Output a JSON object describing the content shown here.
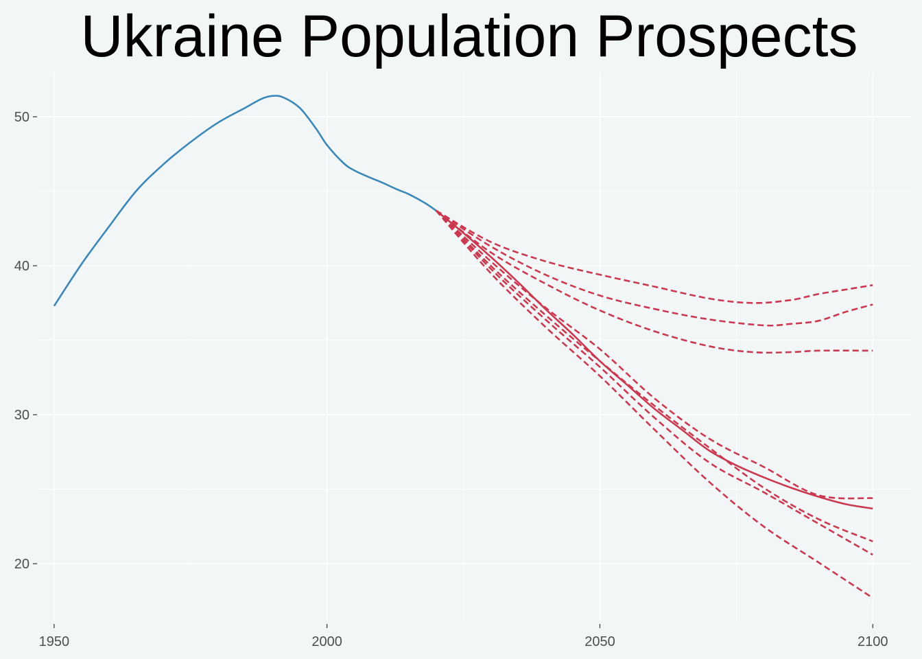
{
  "chart_data": {
    "type": "line",
    "title": "Ukraine Population Prospects",
    "xlabel": "",
    "ylabel": "",
    "xlim": [
      1947,
      2107
    ],
    "ylim": [
      16,
      53
    ],
    "x_ticks": [
      1950,
      2000,
      2050,
      2100
    ],
    "x_tick_labels": [
      "1950",
      "2000",
      "2050",
      "2100"
    ],
    "y_ticks": [
      20,
      30,
      40,
      50
    ],
    "y_tick_labels": [
      "20",
      "30",
      "40",
      "50"
    ],
    "grid": true,
    "legend": "none",
    "colors": {
      "background": "#f2f6f7",
      "historical": "#3a87b8",
      "projection": "#c93a50"
    },
    "series": [
      {
        "role": "historical",
        "style": "solid",
        "x": [
          1950,
          1955,
          1960,
          1965,
          1970,
          1975,
          1980,
          1985,
          1988,
          1990,
          1992,
          1995,
          1998,
          2000,
          2003,
          2005,
          2008,
          2010,
          2013,
          2015,
          2018,
          2020
        ],
        "y": [
          37.3,
          40.1,
          42.6,
          45.0,
          46.8,
          48.3,
          49.6,
          50.6,
          51.2,
          51.4,
          51.3,
          50.6,
          49.2,
          48.1,
          46.9,
          46.4,
          45.9,
          45.6,
          45.1,
          44.8,
          44.2,
          43.7
        ]
      },
      {
        "role": "projection",
        "style": "solid",
        "x": [
          2020,
          2025,
          2030,
          2035,
          2040,
          2045,
          2050,
          2055,
          2060,
          2065,
          2070,
          2075,
          2080,
          2085,
          2090,
          2095,
          2100
        ],
        "y": [
          43.7,
          42.2,
          40.6,
          38.9,
          37.1,
          35.4,
          33.6,
          32.0,
          30.4,
          29.0,
          27.6,
          26.6,
          25.8,
          25.1,
          24.5,
          24.0,
          23.7
        ]
      },
      {
        "role": "projection",
        "style": "dashed",
        "x": [
          2020,
          2030,
          2040,
          2050,
          2060,
          2070,
          2078,
          2085,
          2090,
          2095,
          2100
        ],
        "y": [
          43.7,
          41.6,
          40.3,
          39.4,
          38.6,
          37.8,
          37.5,
          37.7,
          38.1,
          38.4,
          38.7
        ]
      },
      {
        "role": "projection",
        "style": "dashed",
        "x": [
          2020,
          2030,
          2040,
          2050,
          2060,
          2070,
          2080,
          2085,
          2090,
          2095,
          2100
        ],
        "y": [
          43.7,
          41.3,
          39.4,
          38.0,
          37.1,
          36.4,
          36.0,
          36.1,
          36.3,
          36.9,
          37.4
        ]
      },
      {
        "role": "projection",
        "style": "dashed",
        "x": [
          2020,
          2030,
          2040,
          2050,
          2060,
          2070,
          2078,
          2085,
          2090,
          2100
        ],
        "y": [
          43.7,
          40.9,
          38.8,
          37.0,
          35.6,
          34.6,
          34.2,
          34.2,
          34.3,
          34.3
        ]
      },
      {
        "role": "projection",
        "style": "dashed",
        "x": [
          2020,
          2030,
          2040,
          2050,
          2060,
          2070,
          2080,
          2090,
          2100
        ],
        "y": [
          43.7,
          40.3,
          37.2,
          34.4,
          31.1,
          28.4,
          26.5,
          24.6,
          24.4
        ]
      },
      {
        "role": "projection",
        "style": "dashed",
        "x": [
          2020,
          2030,
          2040,
          2050,
          2060,
          2070,
          2080,
          2090,
          2100
        ],
        "y": [
          43.7,
          40.0,
          36.7,
          33.6,
          30.6,
          27.8,
          25.1,
          23.0,
          21.5
        ]
      },
      {
        "role": "projection",
        "style": "dashed",
        "x": [
          2020,
          2030,
          2040,
          2050,
          2060,
          2070,
          2080,
          2090,
          2100
        ],
        "y": [
          43.7,
          39.8,
          36.4,
          33.2,
          29.8,
          26.8,
          24.8,
          22.7,
          20.6
        ]
      },
      {
        "role": "projection",
        "style": "dashed",
        "x": [
          2020,
          2030,
          2040,
          2050,
          2060,
          2070,
          2080,
          2090,
          2100
        ],
        "y": [
          43.7,
          39.5,
          35.9,
          32.6,
          29.0,
          25.5,
          22.5,
          20.1,
          17.7
        ]
      }
    ]
  }
}
